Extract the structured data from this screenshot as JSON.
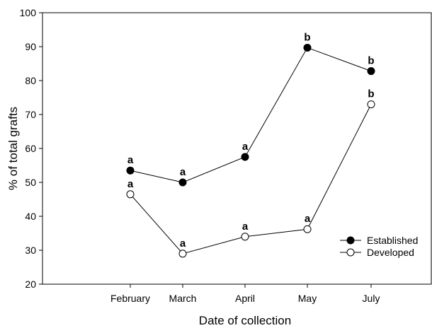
{
  "chart_data": {
    "type": "line",
    "xlabel": "Date of collection",
    "ylabel": "% of total grafts",
    "categories": [
      "February",
      "March",
      "April",
      "May",
      "July"
    ],
    "ylim": [
      20,
      100
    ],
    "yticks": [
      20,
      30,
      40,
      50,
      60,
      70,
      80,
      90,
      100
    ],
    "grid": false,
    "legend_position": "bottom-right",
    "series": [
      {
        "name": "Established",
        "marker": "filled-circle",
        "color": "#000000",
        "values": [
          53.5,
          50,
          57.5,
          89.7,
          82.8
        ],
        "labels": [
          "a",
          "a",
          "a",
          "b",
          "b"
        ]
      },
      {
        "name": "Developed",
        "marker": "open-circle",
        "color": "#000000",
        "values": [
          46.5,
          29,
          34,
          36.2,
          73
        ],
        "labels": [
          "a",
          "a",
          "a",
          "a",
          "b"
        ]
      }
    ]
  }
}
